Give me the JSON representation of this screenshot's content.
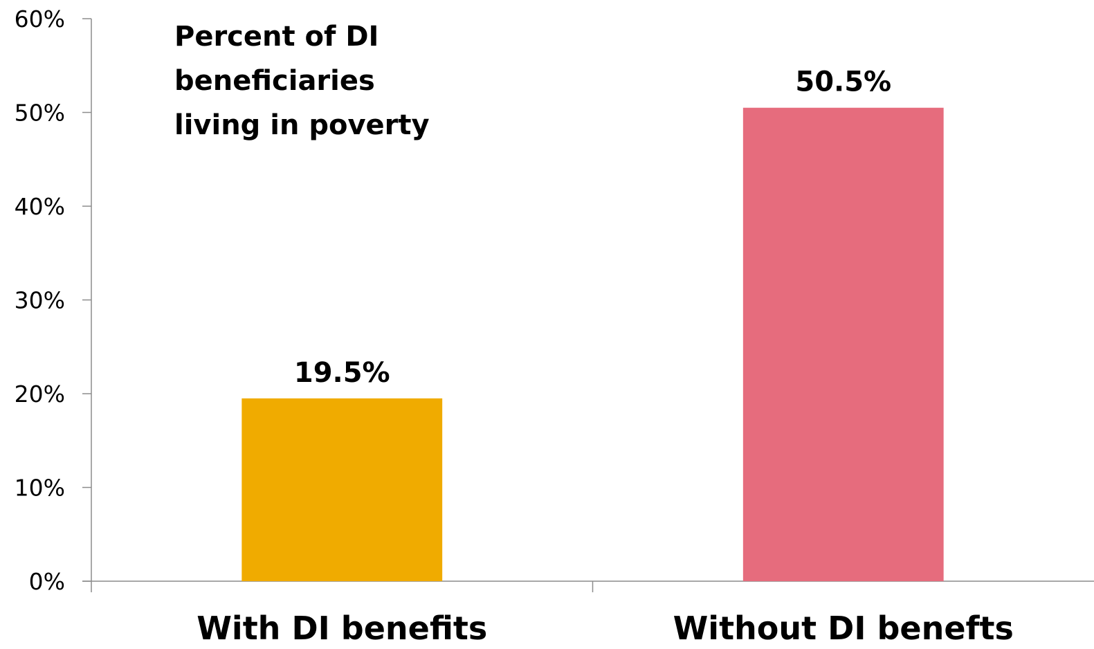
{
  "chart_data": {
    "type": "bar",
    "title_lines": [
      "Percent of DI",
      "beneficiaries",
      "living in poverty"
    ],
    "categories": [
      "With DI benefits",
      "Without DI benefts"
    ],
    "values": [
      19.5,
      50.5
    ],
    "value_labels": [
      "19.5%",
      "50.5%"
    ],
    "bar_colors": [
      "#f0ab00",
      "#e66c7d"
    ],
    "ylim": [
      0,
      60
    ],
    "y_ticks": [
      0,
      10,
      20,
      30,
      40,
      50,
      60
    ],
    "y_tick_labels": [
      "0%",
      "10%",
      "20%",
      "30%",
      "40%",
      "50%",
      "60%"
    ],
    "grid": false,
    "legend": "none"
  }
}
